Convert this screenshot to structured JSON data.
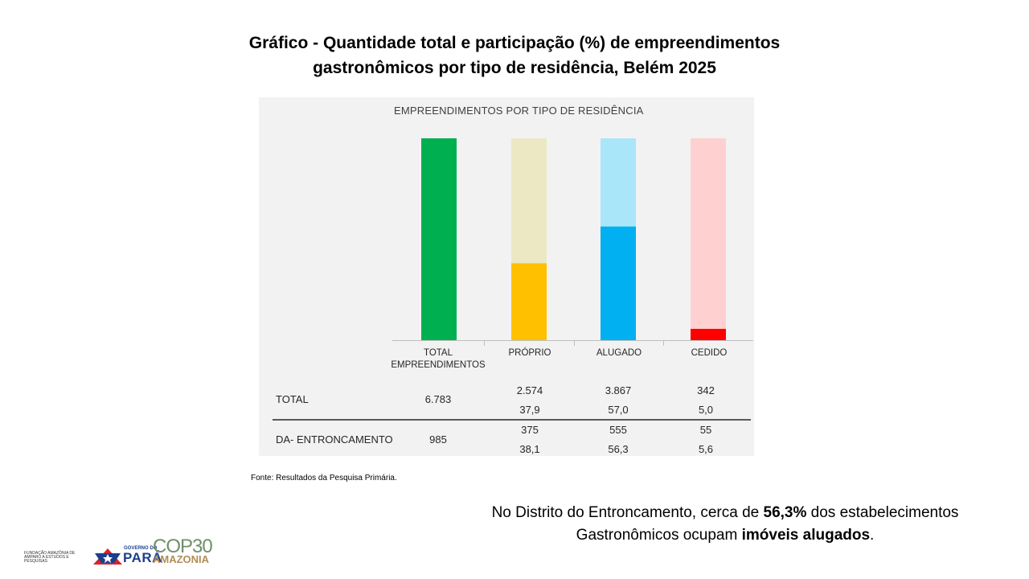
{
  "page": {
    "title_line1": "Gráfico - Quantidade total e participação (%) de empreendimentos",
    "title_line2": "gastronômicos por tipo de residência, Belém 2025",
    "source": "Fonte: Resultados da Pesquisa Primária.",
    "note_part1": "No Distrito do Entroncamento, cerca de ",
    "note_bold1": "56,3%",
    "note_part2": " dos estabelecimentos",
    "note_part3": "Gastronômicos ocupam ",
    "note_bold2": "imóveis alugados",
    "note_part4": "."
  },
  "logos": {
    "fapespa_l1": "FUNDAÇÃO AMAZÔNIA DE",
    "fapespa_l2": "AMPARO A ESTUDOS E",
    "fapespa_l3": "PESQUISAS",
    "gov_label": "GOVERNO DO",
    "gov_name": "PARÁ",
    "cop_label": "COP30",
    "amazonia_label": "AMAZONIA"
  },
  "chart_data": {
    "type": "bar",
    "title": "EMPREENDIMENTOS POR TIPO DE RESIDÊNCIA",
    "categories": [
      "TOTAL EMPREENDIMENTOS",
      "PRÓPRIO",
      "ALUGADO",
      "CEDIDO"
    ],
    "series": [
      {
        "name": "TOTAL",
        "values": [
          100,
          37.9,
          57.0,
          5.0
        ]
      },
      {
        "name": "DA- ENTRONCAMENTO",
        "values": [
          100,
          38.1,
          56.3,
          5.6
        ]
      }
    ],
    "bar_colors": {
      "total": "#00b050",
      "proprio_fill": "#ffc000",
      "proprio_bg": "#ece8c4",
      "alugado_fill": "#00b0f0",
      "alugado_bg": "#aae6fa",
      "cedido_fill": "#ff0000",
      "cedido_bg": "#ffd0d0"
    },
    "ylim": [
      0,
      100
    ],
    "table": {
      "rows": [
        {
          "label": "TOTAL",
          "total": "6.783",
          "proprio": [
            "2.574",
            "37,9"
          ],
          "alugado": [
            "3.867",
            "57,0"
          ],
          "cedido": [
            "342",
            "5,0"
          ]
        },
        {
          "label": "DA- ENTRONCAMENTO",
          "total": "985",
          "proprio": [
            "375",
            "38,1"
          ],
          "alugado": [
            "555",
            "56,3"
          ],
          "cedido": [
            "55",
            "5,6"
          ]
        }
      ]
    }
  }
}
